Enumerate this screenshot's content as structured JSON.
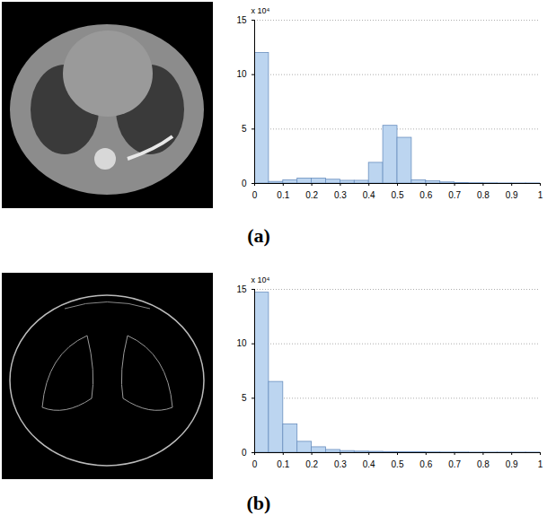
{
  "chart_data": [
    {
      "type": "histogram",
      "caption": "(a)",
      "annotation": "x 10⁴",
      "bins": [
        0,
        0.05,
        0.1,
        0.15,
        0.2,
        0.25,
        0.3,
        0.35,
        0.4,
        0.45,
        0.5,
        0.55,
        0.6,
        0.65,
        0.7,
        0.75,
        0.8,
        0.85,
        0.9,
        0.95,
        1
      ],
      "values": [
        12,
        0.15,
        0.3,
        0.45,
        0.45,
        0.35,
        0.25,
        0.25,
        1.9,
        5.3,
        4.2,
        0.3,
        0.2,
        0.1,
        0.05,
        0.03,
        0.02,
        0.01,
        0.01,
        0.01
      ],
      "color": "#bcd5f0",
      "xlim": [
        0,
        1
      ],
      "xticks": [
        0,
        0.1,
        0.2,
        0.3,
        0.4,
        0.5,
        0.6,
        0.7,
        0.8,
        0.9,
        1
      ],
      "ylim": [
        0,
        15
      ],
      "yticks": [
        0,
        5,
        10,
        15
      ],
      "grid": true
    },
    {
      "type": "histogram",
      "caption": "(b)",
      "annotation": "x 10⁴",
      "bins": [
        0,
        0.05,
        0.1,
        0.15,
        0.2,
        0.25,
        0.3,
        0.35,
        0.4,
        0.45,
        0.5,
        0.55,
        0.6,
        0.65,
        0.7,
        0.75,
        0.8,
        0.85,
        0.9,
        0.95,
        1
      ],
      "values": [
        14.7,
        6.5,
        2.6,
        1.0,
        0.5,
        0.25,
        0.15,
        0.1,
        0.08,
        0.06,
        0.05,
        0.04,
        0.03,
        0.02,
        0.02,
        0.01,
        0.01,
        0.01,
        0.01,
        0.01
      ],
      "color": "#bcd5f0",
      "xlim": [
        0,
        1
      ],
      "xticks": [
        0,
        0.1,
        0.2,
        0.3,
        0.4,
        0.5,
        0.6,
        0.7,
        0.8,
        0.9,
        1
      ],
      "ylim": [
        0,
        15
      ],
      "yticks": [
        0,
        5,
        10,
        15
      ],
      "grid": true
    }
  ]
}
